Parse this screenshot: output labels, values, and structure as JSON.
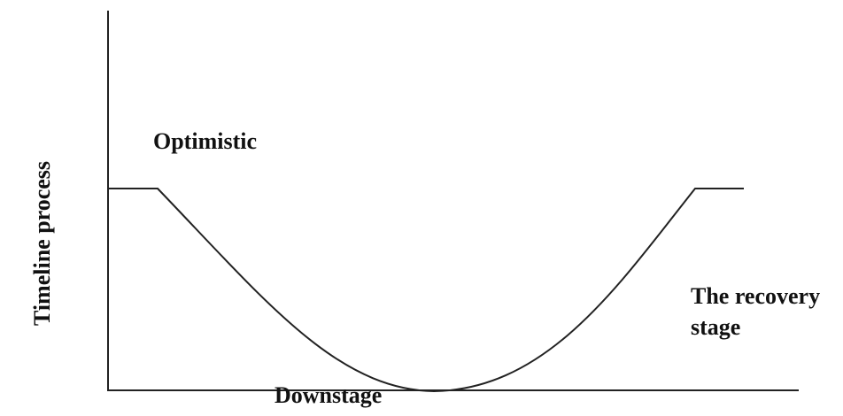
{
  "axis_label": "Timeline process",
  "stages": {
    "optimistic": "Optimistic",
    "downstage": "Downstage",
    "recovery": [
      "The recovery",
      "stage"
    ]
  }
}
